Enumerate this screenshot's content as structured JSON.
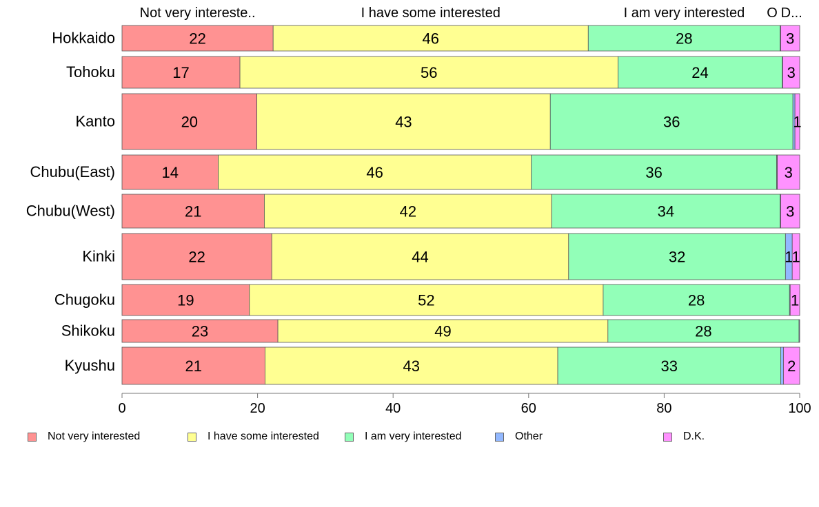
{
  "chart_data": {
    "type": "bar",
    "orientation": "horizontal",
    "stacked": true,
    "categories": [
      "Hokkaido",
      "Tohoku",
      "Kanto",
      "Chubu(East)",
      "Chubu(West)",
      "Kinki",
      "Chugoku",
      "Shikoku",
      "Kyushu"
    ],
    "series": [
      {
        "name": "Not very interested",
        "color": "#ff9292",
        "values": [
          22.3,
          17.4,
          19.9,
          14.2,
          21.0,
          22.1,
          18.8,
          23.0,
          21.1
        ],
        "labels": [
          "22",
          "17",
          "20",
          "14",
          "21",
          "22",
          "19",
          "23",
          "21"
        ]
      },
      {
        "name": "I have some interested",
        "color": "#ffff92",
        "values": [
          46.5,
          55.8,
          43.3,
          46.2,
          42.4,
          43.8,
          52.2,
          48.7,
          43.2
        ],
        "labels": [
          "46",
          "56",
          "43",
          "46",
          "42",
          "44",
          "52",
          "49",
          "43"
        ]
      },
      {
        "name": "I am very interested",
        "color": "#92ffb8",
        "values": [
          28.3,
          24.2,
          35.8,
          36.2,
          33.7,
          32.0,
          27.5,
          28.2,
          32.9
        ],
        "labels": [
          "28",
          "24",
          "36",
          "36",
          "34",
          "32",
          "28",
          "28",
          "33"
        ]
      },
      {
        "name": "Other",
        "color": "#92b8ff",
        "values": [
          0.1,
          0.1,
          0.3,
          0.1,
          0.1,
          1.0,
          0.1,
          0.1,
          0.4
        ],
        "labels": [
          "",
          "",
          "",
          "",
          "",
          "1",
          "",
          "",
          ""
        ]
      },
      {
        "name": "D.K.",
        "color": "#ff92ff",
        "values": [
          2.8,
          2.5,
          0.7,
          3.3,
          2.8,
          1.1,
          1.4,
          0.0,
          2.4
        ],
        "labels": [
          "3",
          "3",
          "1",
          "3",
          "3",
          "1",
          "1",
          "",
          "2"
        ]
      }
    ],
    "top_labels": [
      "Not very intereste..",
      "I have some interested",
      "I am very interested",
      "O",
      "D..."
    ],
    "x_ticks": [
      "0",
      "20",
      "40",
      "60",
      "80",
      "100"
    ],
    "xlim": [
      0,
      100
    ],
    "xlabel": "",
    "ylabel": "",
    "grid": false,
    "legend_position": "bottom"
  }
}
